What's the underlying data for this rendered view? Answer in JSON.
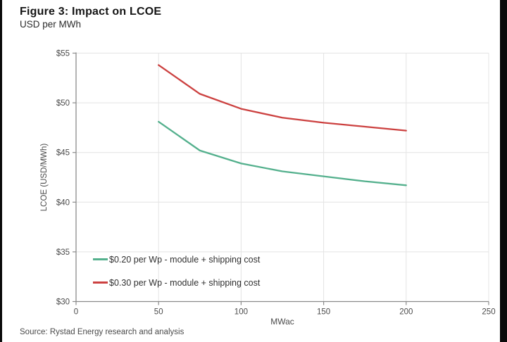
{
  "header": {
    "title": "Figure 3: Impact on LCOE",
    "subtitle": "USD per MWh"
  },
  "footer": {
    "source": "Source: Rystad Energy research and analysis"
  },
  "chart_data": {
    "type": "line",
    "title": "Figure 3: Impact on LCOE",
    "subtitle": "USD per MWh",
    "xlabel": "MWac",
    "ylabel": "LCOE (USD/MWh)",
    "xlim": [
      0,
      250
    ],
    "ylim": [
      30,
      55
    ],
    "x_ticks": [
      0,
      50,
      100,
      150,
      200,
      250
    ],
    "x_tick_labels": [
      "0",
      "50",
      "100",
      "150",
      "200",
      "250"
    ],
    "y_ticks": [
      30,
      35,
      40,
      45,
      50,
      55
    ],
    "y_tick_labels": [
      "$30",
      "$35",
      "$40",
      "$45",
      "$50",
      "$55"
    ],
    "grid": true,
    "legend_position": "inside-bottom-left",
    "x": [
      50,
      75,
      100,
      125,
      150,
      175,
      200
    ],
    "series": [
      {
        "name": "$0.20 per Wp - module + shipping cost",
        "color": "#54b08d",
        "values": [
          48.1,
          45.2,
          43.9,
          43.1,
          42.6,
          42.1,
          41.7
        ]
      },
      {
        "name": "$0.30 per Wp - module + shipping cost",
        "color": "#cc4140",
        "values": [
          53.8,
          50.9,
          49.4,
          48.5,
          48.0,
          47.6,
          47.2
        ]
      }
    ],
    "colors": {
      "grid": "#e4e4e4",
      "axis": "#8a8a8a",
      "tick_text": "#4a4a4a"
    }
  }
}
